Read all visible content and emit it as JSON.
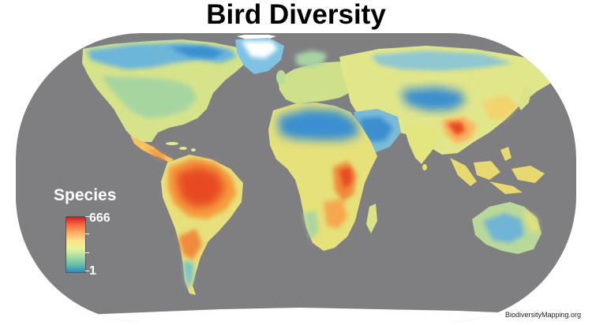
{
  "title": "Bird Diversity",
  "legend": {
    "title": "Species",
    "max_label": "666",
    "min_label": "1",
    "max_value": 666,
    "min_value": 1,
    "gradient_colors": [
      "#d7191c",
      "#f46d43",
      "#fdae61",
      "#fee08b",
      "#e6f598",
      "#abdda4",
      "#66c2a5",
      "#3288bd"
    ]
  },
  "credit": "BiodiversityMapping.org",
  "colors": {
    "ocean": "#7f7f82",
    "background": "#ffffff",
    "ice": "#ffffff",
    "low": "#3b8fd0",
    "high": "#d7301f"
  }
}
